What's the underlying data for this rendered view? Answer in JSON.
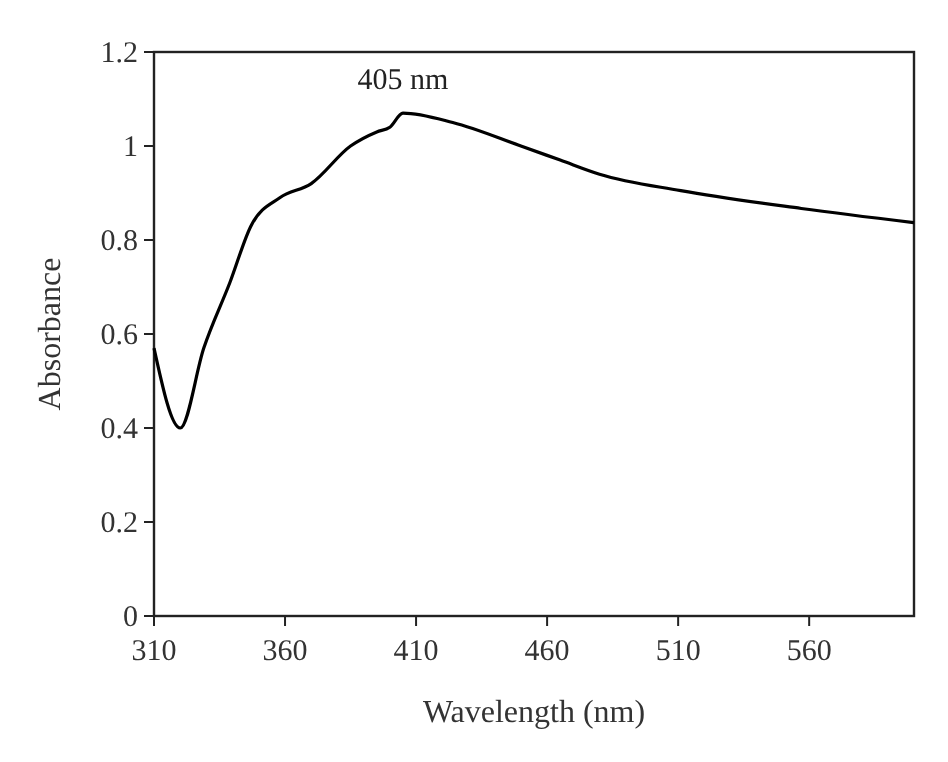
{
  "chart_data": {
    "type": "line",
    "xlabel": "Wavelength (nm)",
    "ylabel": "Absorbance",
    "x": [
      310,
      320,
      329,
      339,
      347,
      358,
      370,
      385,
      395,
      400,
      405,
      424,
      450,
      465,
      480,
      511,
      557,
      600
    ],
    "series": [
      {
        "color": "#000000",
        "values": [
          0.57,
          0.4,
          0.57,
          0.71,
          0.83,
          0.89,
          0.92,
          1.0,
          1.03,
          1.04,
          1.07,
          1.05,
          1.0,
          0.97,
          0.94,
          0.905,
          0.867,
          0.837
        ]
      }
    ],
    "xlim": [
      310,
      600
    ],
    "xticks": [
      310,
      360,
      410,
      460,
      510,
      560
    ],
    "ylim": [
      0,
      1.2
    ],
    "yticks": [
      0,
      0.2,
      0.4,
      0.6,
      0.8,
      1,
      1.2
    ],
    "annotations": [
      "405 nm"
    ],
    "grid": false,
    "marker": "none",
    "line_style": "solid"
  }
}
